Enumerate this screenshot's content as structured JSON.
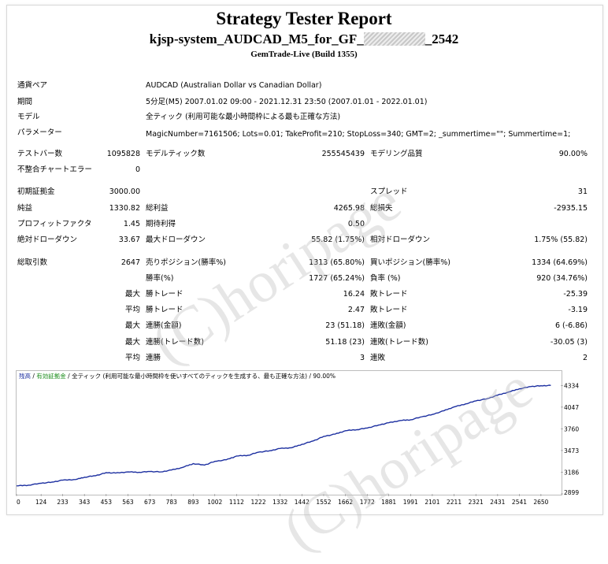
{
  "header": {
    "title": "Strategy Tester Report",
    "subtitle_prefix": "kjsp-system_AUDCAD_M5_for_GF_",
    "subtitle_suffix": "_2542",
    "build": "GemTrade-Live (Build 1355)"
  },
  "info": {
    "symbol_label": "通貨ペア",
    "symbol_value": "AUDCAD (Australian Dollar vs Canadian Dollar)",
    "period_label": "期間",
    "period_value": "5分足(M5) 2007.01.02 09:00 - 2021.12.31 23:50 (2007.01.01 - 2022.01.01)",
    "model_label": "モデル",
    "model_value": "全ティック (利用可能な最小時間枠による最も正確な方法)",
    "params_label": "パラメーター",
    "params_value": "MagicNumber=7161506; Lots=0.01; TakeProfit=210; StopLoss=340; GMT=2; _summertime=\"\"; Summertime=1;"
  },
  "stats": {
    "bars_label": "テストバー数",
    "bars_value": "1095828",
    "ticks_label": "モデルティック数",
    "ticks_value": "255545439",
    "quality_label": "モデリング品質",
    "quality_value": "90.00%",
    "errors_label": "不整合チャートエラー",
    "errors_value": "0",
    "deposit_label": "初期証拠金",
    "deposit_value": "3000.00",
    "spread_label": "スプレッド",
    "spread_value": "31",
    "netprofit_label": "純益",
    "netprofit_value": "1330.82",
    "grossprofit_label": "総利益",
    "grossprofit_value": "4265.98",
    "grossloss_label": "総損失",
    "grossloss_value": "-2935.15",
    "pf_label": "プロフィットファクタ",
    "pf_value": "1.45",
    "payoff_label": "期待利得",
    "payoff_value": "0.50",
    "absdd_label": "絶対ドローダウン",
    "absdd_value": "33.67",
    "maxdd_label": "最大ドローダウン",
    "maxdd_value": "55.82 (1.75%)",
    "reldd_label": "相対ドローダウン",
    "reldd_value": "1.75% (55.82)",
    "trades_label": "総取引数",
    "trades_value": "2647",
    "short_label": "売りポジション(勝率%)",
    "short_value": "1313 (65.80%)",
    "long_label": "買いポジション(勝率%)",
    "long_value": "1334 (64.69%)",
    "winrate_label": "勝率(%)",
    "winrate_value": "1727 (65.24%)",
    "lossrate_label": "負率 (%)",
    "lossrate_value": "920 (34.76%)",
    "max1": "最大",
    "max_win_label": "勝トレード",
    "max_win_value": "16.24",
    "max_loss_label": "敗トレード",
    "max_loss_value": "-25.39",
    "avg1": "平均",
    "avg_win_label": "勝トレード",
    "avg_win_value": "2.47",
    "avg_loss_label": "敗トレード",
    "avg_loss_value": "-3.19",
    "max2": "最大",
    "cw_amount_label": "連勝(金額)",
    "cw_amount_value": "23 (51.18)",
    "cl_amount_label": "連敗(金額)",
    "cl_amount_value": "6 (-6.86)",
    "max3": "最大",
    "cw_trades_label": "連勝(トレード数)",
    "cw_trades_value": "51.18 (23)",
    "cl_trades_label": "連敗(トレード数)",
    "cl_trades_value": "-30.05 (3)",
    "avg2": "平均",
    "avg_cw_label": "連勝",
    "avg_cw_value": "3",
    "avg_cl_label": "連敗",
    "avg_cl_value": "2"
  },
  "watermark": {
    "text": "(C)horipage"
  },
  "chart_legend": {
    "balance": "残高",
    "sep1": " / ",
    "equity": "有効証拠金",
    "rest": " / 全ティック (利用可能な最小時間枠を使いすべてのティックを生成する、最も正確な方法) / 90.00%"
  },
  "colors": {
    "balance_line": "#1c2fa0",
    "text_blue": "#1c2fa0",
    "text_green": "#1a8c1a"
  },
  "chart_data": {
    "type": "line",
    "x_ticks": [
      0,
      124,
      233,
      343,
      453,
      563,
      673,
      783,
      893,
      1002,
      1112,
      1222,
      1332,
      1442,
      1552,
      1662,
      1772,
      1881,
      1991,
      2101,
      2211,
      2321,
      2431,
      2541,
      2650
    ],
    "y_ticks": [
      2899,
      3186,
      3473,
      3760,
      4047,
      4334
    ],
    "xlim": [
      0,
      2750
    ],
    "ylim": [
      2899,
      4400
    ],
    "series": [
      {
        "name": "残高",
        "x": [
          0,
          60,
          124,
          180,
          233,
          300,
          343,
          400,
          453,
          500,
          563,
          620,
          673,
          730,
          783,
          840,
          893,
          950,
          1002,
          1060,
          1112,
          1170,
          1222,
          1280,
          1332,
          1390,
          1442,
          1500,
          1552,
          1610,
          1662,
          1720,
          1772,
          1830,
          1881,
          1940,
          1991,
          2050,
          2101,
          2160,
          2211,
          2270,
          2321,
          2380,
          2431,
          2490,
          2541,
          2600,
          2650,
          2700
        ],
        "y": [
          3005,
          3015,
          3040,
          3055,
          3080,
          3090,
          3120,
          3140,
          3180,
          3175,
          3190,
          3185,
          3195,
          3190,
          3215,
          3250,
          3300,
          3280,
          3330,
          3350,
          3400,
          3410,
          3450,
          3470,
          3500,
          3510,
          3555,
          3600,
          3660,
          3690,
          3735,
          3750,
          3770,
          3810,
          3840,
          3870,
          3880,
          3920,
          3950,
          4000,
          4050,
          4090,
          4130,
          4160,
          4205,
          4250,
          4290,
          4320,
          4330,
          4334
        ]
      }
    ]
  }
}
